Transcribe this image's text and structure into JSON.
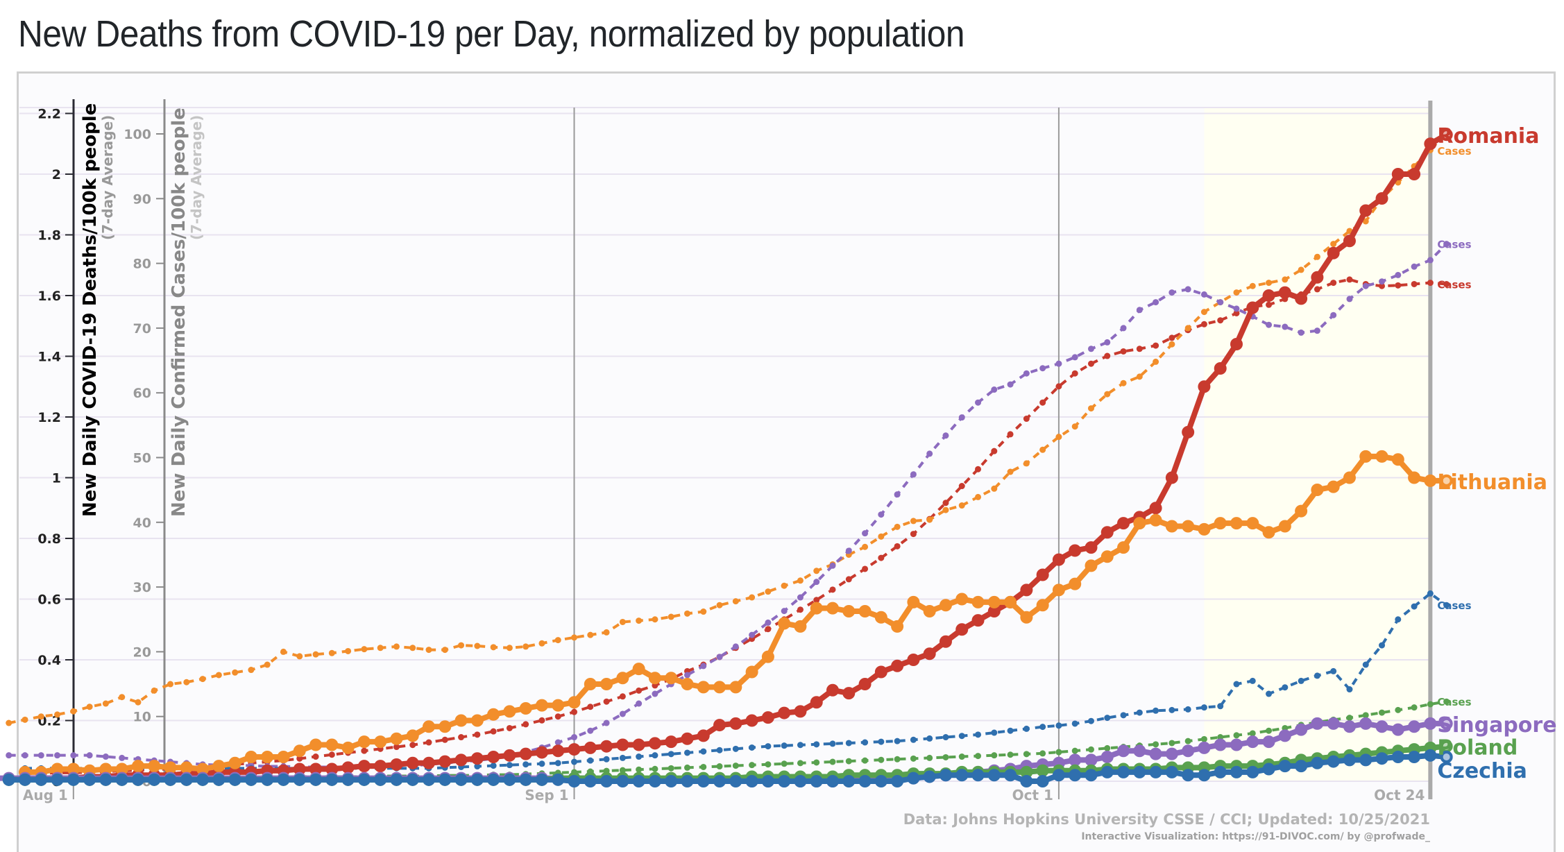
{
  "page": {
    "title": "New Deaths from COVID-19 per Day, normalized by population"
  },
  "chart_data": {
    "type": "line",
    "title": "New Deaths from COVID-19 per Day, normalized by population",
    "x_start_date": "2021-07-29",
    "x_end_date": "2021-10-24",
    "x_tick_labels": [
      "Aug 1",
      "Sep 1",
      "Oct 1",
      "Oct 24"
    ],
    "x_tick_days": [
      3,
      34,
      64,
      87
    ],
    "highlight_start_day": 73,
    "y_left": {
      "label": "New Daily COVID-19 Deaths/100k people",
      "sublabel": "(7-day Average)",
      "ylim": [
        0,
        2.2
      ],
      "ticks": [
        0,
        0.2,
        0.4,
        0.6,
        0.8,
        1,
        1.2,
        1.4,
        1.6,
        1.8,
        2,
        2.2
      ],
      "tick_labels": [
        "0",
        "0.2",
        "0.4",
        "0.6",
        "0.8",
        "1",
        "1.2",
        "1.4",
        "1.6",
        "1.8",
        "2",
        "2.2"
      ]
    },
    "y_right_cases": {
      "label": "New Daily Confirmed Cases/100k people",
      "sublabel": "(7-day Average)",
      "ylim": [
        0,
        103
      ],
      "ticks": [
        0,
        10,
        20,
        30,
        40,
        50,
        60,
        70,
        80,
        90,
        100
      ],
      "tick_labels": [
        "0",
        "10",
        "20",
        "30",
        "40",
        "50",
        "60",
        "70",
        "80",
        "90",
        "100"
      ]
    },
    "grid": true,
    "legend": "direct-labels-right",
    "source": "Data: Johns Hopkins University CSSE / CCI; Updated: 10/25/2021",
    "credit": "Interactive Visualization: https://91-DIVOC.com/ by @profwade_",
    "cases_label": "Cases",
    "series": [
      {
        "name": "Romania",
        "color": "#c83a2e",
        "deaths": [
          0.01,
          0.01,
          0.01,
          0.01,
          0.015,
          0.015,
          0.02,
          0.02,
          0.02,
          0.02,
          0.025,
          0.025,
          0.03,
          0.03,
          0.03,
          0.035,
          0.035,
          0.04,
          0.04,
          0.04,
          0.045,
          0.05,
          0.05,
          0.055,
          0.06,
          0.06,
          0.065,
          0.07,
          0.075,
          0.08,
          0.085,
          0.09,
          0.095,
          0.1,
          0.105,
          0.11,
          0.115,
          0.12,
          0.12,
          0.125,
          0.13,
          0.14,
          0.15,
          0.185,
          0.19,
          0.2,
          0.21,
          0.225,
          0.23,
          0.26,
          0.3,
          0.29,
          0.32,
          0.36,
          0.38,
          0.4,
          0.42,
          0.46,
          0.5,
          0.53,
          0.56,
          0.59,
          0.63,
          0.68,
          0.73,
          0.76,
          0.77,
          0.82,
          0.85,
          0.87,
          0.9,
          1.0,
          1.15,
          1.3,
          1.36,
          1.44,
          1.56,
          1.6,
          1.61,
          1.59,
          1.66,
          1.74,
          1.78,
          1.88,
          1.92,
          2.0,
          2.0,
          2.1,
          2.13
        ],
        "cases": [
          1.2,
          1.2,
          1.3,
          1.3,
          1.4,
          1.5,
          1.6,
          1.7,
          1.8,
          1.9,
          2,
          2.2,
          2.4,
          2.6,
          2.8,
          3,
          3.2,
          3.5,
          3.8,
          4.1,
          4.4,
          4.7,
          5,
          5.3,
          5.6,
          6,
          6.4,
          6.8,
          7.2,
          7.7,
          8.2,
          8.8,
          9.4,
          10,
          10.7,
          11.5,
          12.3,
          13.1,
          14,
          14.8,
          15.8,
          17,
          18,
          19.2,
          20.6,
          22,
          23.5,
          25,
          26.5,
          28,
          29.6,
          31.2,
          32.8,
          34.5,
          36.3,
          38.2,
          40.5,
          43,
          45.6,
          48.2,
          51,
          53.6,
          56,
          58.5,
          61,
          63,
          64.5,
          65.7,
          66.4,
          66.8,
          67.3,
          68.5,
          69.7,
          70.6,
          71.2,
          72.3,
          73.3,
          73.6,
          74.5,
          75.2,
          76,
          77,
          77.5,
          76.8,
          76.5,
          76.6,
          76.8,
          77,
          76.8
        ]
      },
      {
        "name": "Lithuania",
        "color": "#f28e2b",
        "deaths": [
          0.03,
          0.03,
          0.04,
          0.04,
          0.035,
          0.04,
          0.04,
          0.05,
          0.05,
          0.045,
          0.045,
          0.04,
          0.05,
          0.06,
          0.08,
          0.08,
          0.08,
          0.1,
          0.12,
          0.12,
          0.11,
          0.13,
          0.13,
          0.14,
          0.15,
          0.18,
          0.18,
          0.2,
          0.2,
          0.22,
          0.23,
          0.24,
          0.25,
          0.25,
          0.26,
          0.32,
          0.32,
          0.34,
          0.37,
          0.34,
          0.34,
          0.32,
          0.31,
          0.31,
          0.31,
          0.36,
          0.41,
          0.52,
          0.51,
          0.57,
          0.57,
          0.56,
          0.56,
          0.54,
          0.51,
          0.59,
          0.56,
          0.58,
          0.6,
          0.59,
          0.59,
          0.59,
          0.54,
          0.58,
          0.63,
          0.65,
          0.71,
          0.74,
          0.77,
          0.85,
          0.86,
          0.84,
          0.84,
          0.83,
          0.85,
          0.85,
          0.85,
          0.82,
          0.84,
          0.89,
          0.96,
          0.97,
          1.0,
          1.07,
          1.07,
          1.06,
          1.0,
          0.99,
          0.99
        ],
        "cases": [
          9,
          9.5,
          10,
          10.3,
          10.8,
          11.5,
          12,
          13,
          12.2,
          14,
          15,
          15.3,
          15.8,
          16.4,
          16.8,
          17.2,
          18,
          20,
          19.3,
          19.6,
          19.8,
          20.1,
          20.4,
          20.6,
          20.8,
          20.6,
          20.3,
          20.3,
          21,
          20.9,
          20.7,
          20.6,
          20.8,
          21.3,
          21.8,
          22.2,
          22.6,
          23,
          24.6,
          24.8,
          25,
          25.4,
          25.9,
          26.2,
          27.2,
          27.8,
          28.4,
          29.3,
          30.2,
          31,
          32.5,
          33.5,
          35,
          36.2,
          37.8,
          39.3,
          40.2,
          40.4,
          41.9,
          42.6,
          43.9,
          45.2,
          47.8,
          49.1,
          51.2,
          53.2,
          54.8,
          57.6,
          59.8,
          61.5,
          62.5,
          64.8,
          67.5,
          70,
          72.5,
          74,
          75.5,
          76.5,
          77,
          77.5,
          79,
          81,
          83,
          85,
          86.5,
          90,
          92.5,
          95,
          97.5,
          100.2
        ]
      },
      {
        "name": "Singapore",
        "color": "#8c6bbf",
        "deaths": [
          0.01,
          0.01,
          0.01,
          0.01,
          0.01,
          0.01,
          0.01,
          0.01,
          0.01,
          0.01,
          0.01,
          0.01,
          0.01,
          0.01,
          0.01,
          0.01,
          0.01,
          0.01,
          0.01,
          0.01,
          0.01,
          0.01,
          0.01,
          0.01,
          0.01,
          0.01,
          0.01,
          0.01,
          0.01,
          0.01,
          0.01,
          0.01,
          0.01,
          0.01,
          0.01,
          0.01,
          0.01,
          0.01,
          0.01,
          0.005,
          0.005,
          0.005,
          0.005,
          0.005,
          0.005,
          0.005,
          0.005,
          0.005,
          0.0,
          0.0,
          0.0,
          0.0,
          0.0,
          0.0,
          0.005,
          0.005,
          0.01,
          0.01,
          0.01,
          0.015,
          0.02,
          0.025,
          0.03,
          0.035,
          0.04,
          0.05,
          0.055,
          0.06,
          0.07,
          0.07,
          0.08,
          0.1,
          0.1,
          0.09,
          0.09,
          0.1,
          0.11,
          0.12,
          0.12,
          0.13,
          0.13,
          0.15,
          0.17,
          0.19,
          0.19,
          0.18,
          0.19,
          0.18,
          0.17,
          0.18,
          0.19,
          0.19
        ],
        "cases": [
          4,
          4,
          4,
          4,
          4,
          4,
          3.8,
          3.6,
          3.4,
          3.2,
          3,
          2.8,
          2.6,
          2.5,
          2.5,
          2.4,
          2.3,
          2.3,
          2.2,
          2.2,
          2.2,
          2.2,
          2.2,
          2.2,
          2.3,
          2.4,
          2.6,
          2.8,
          3,
          3.2,
          3.5,
          4,
          4.5,
          5.2,
          6,
          6.8,
          7.8,
          9,
          10.4,
          12,
          13.5,
          15,
          16.4,
          17.8,
          19.2,
          20.8,
          22.6,
          24.5,
          26.3,
          28.4,
          30.8,
          33.3,
          35.6,
          38.3,
          41.2,
          44.3,
          47.4,
          50.6,
          53.4,
          56.2,
          58.5,
          60.5,
          61.3,
          63,
          63.8,
          64.5,
          65.5,
          66.8,
          67.8,
          70,
          72.8,
          74,
          75.5,
          76,
          75.2,
          74,
          73,
          71.8,
          70.5,
          70.2,
          69.3,
          69.6,
          72,
          74.5,
          76.5,
          77.2,
          78.2,
          79.5,
          80.5,
          83
        ]
      },
      {
        "name": "Poland",
        "color": "#59a14f",
        "deaths": [
          0.005,
          0.005,
          0.005,
          0.005,
          0.005,
          0.005,
          0.005,
          0.005,
          0.005,
          0.005,
          0.005,
          0.005,
          0.005,
          0.005,
          0.005,
          0.005,
          0.005,
          0.005,
          0.005,
          0.005,
          0.005,
          0.005,
          0.005,
          0.005,
          0.005,
          0.005,
          0.005,
          0.005,
          0.005,
          0.005,
          0.005,
          0.005,
          0.005,
          0.005,
          0.01,
          0.01,
          0.01,
          0.01,
          0.01,
          0.01,
          0.01,
          0.01,
          0.01,
          0.01,
          0.01,
          0.01,
          0.015,
          0.015,
          0.015,
          0.015,
          0.015,
          0.015,
          0.02,
          0.02,
          0.02,
          0.02,
          0.025,
          0.025,
          0.025,
          0.03,
          0.03,
          0.03,
          0.03,
          0.03,
          0.035,
          0.035,
          0.035,
          0.035,
          0.04,
          0.04,
          0.04,
          0.04,
          0.045,
          0.045,
          0.045,
          0.05,
          0.05,
          0.05,
          0.055,
          0.06,
          0.07,
          0.075,
          0.08,
          0.085,
          0.09,
          0.095,
          0.1,
          0.105,
          0.11,
          0.115
        ],
        "cases": [
          0.5,
          0.5,
          0.5,
          0.5,
          0.5,
          0.5,
          0.5,
          0.5,
          0.5,
          0.5,
          0.5,
          0.6,
          0.6,
          0.6,
          0.6,
          0.6,
          0.6,
          0.7,
          0.7,
          0.7,
          0.7,
          0.7,
          0.8,
          0.8,
          0.8,
          0.8,
          0.9,
          0.9,
          0.9,
          1,
          1,
          1.1,
          1.2,
          1.3,
          1.4,
          1.5,
          1.6,
          1.7,
          1.8,
          1.9,
          2,
          2.1,
          2.2,
          2.3,
          2.4,
          2.5,
          2.6,
          2.7,
          2.8,
          2.9,
          3,
          3.1,
          3.2,
          3.3,
          3.4,
          3.5,
          3.6,
          3.7,
          3.8,
          3.9,
          4,
          4.1,
          4.2,
          4.3,
          4.5,
          4.7,
          4.9,
          5.1,
          5.3,
          5.5,
          5.7,
          5.9,
          6.2,
          6.5,
          6.8,
          7.1,
          7.4,
          7.8,
          8.2,
          8.7,
          9.1,
          9.5,
          9.8,
          10.2,
          10.6,
          11,
          11.4,
          11.9,
          12.3
        ]
      },
      {
        "name": "Czechia",
        "color": "#2f6fae",
        "deaths": [
          0.005,
          0.005,
          0.005,
          0.005,
          0.005,
          0.005,
          0.005,
          0.005,
          0.005,
          0.005,
          0.005,
          0.005,
          0.005,
          0.005,
          0.005,
          0.005,
          0.005,
          0.005,
          0.005,
          0.005,
          0.005,
          0.005,
          0.005,
          0.005,
          0.005,
          0.005,
          0.005,
          0.005,
          0.005,
          0.005,
          0.005,
          0.005,
          0.005,
          0.005,
          0.005,
          0.0,
          0.0,
          0.0,
          0.0,
          0.0,
          0.0,
          0.0,
          0.0,
          0.0,
          0.0,
          0.0,
          0.0,
          0.0,
          0.0,
          0.0,
          0.0,
          0.0,
          0.0,
          0.0,
          0.0,
          0.0,
          0.01,
          0.015,
          0.02,
          0.02,
          0.02,
          0.02,
          0.02,
          0.0,
          0.0,
          0.02,
          0.02,
          0.02,
          0.03,
          0.03,
          0.03,
          0.03,
          0.03,
          0.02,
          0.02,
          0.03,
          0.03,
          0.03,
          0.04,
          0.05,
          0.05,
          0.06,
          0.065,
          0.07,
          0.07,
          0.075,
          0.08,
          0.08,
          0.085,
          0.08
        ],
        "cases": [
          2,
          2,
          2,
          2,
          2,
          2,
          2,
          2,
          2,
          2,
          2,
          2,
          2,
          2,
          2,
          2,
          2,
          2,
          2,
          2,
          2,
          2,
          2,
          2,
          2,
          2,
          2.1,
          2.2,
          2.3,
          2.4,
          2.5,
          2.6,
          2.7,
          2.8,
          3,
          3.2,
          3.4,
          3.6,
          3.8,
          4,
          4.2,
          4.4,
          4.6,
          4.8,
          5,
          5.2,
          5.4,
          5.5,
          5.6,
          5.7,
          5.8,
          5.9,
          6,
          6.1,
          6.2,
          6.4,
          6.6,
          6.8,
          7,
          7.2,
          7.5,
          7.8,
          8.1,
          8.4,
          8.6,
          8.9,
          9.3,
          9.8,
          10.2,
          10.6,
          10.9,
          11,
          11.1,
          11.4,
          11.6,
          15,
          15.5,
          13.5,
          14.5,
          15.5,
          16.3,
          17,
          14.2,
          18,
          21,
          25,
          27,
          29,
          27.2
        ]
      }
    ]
  }
}
